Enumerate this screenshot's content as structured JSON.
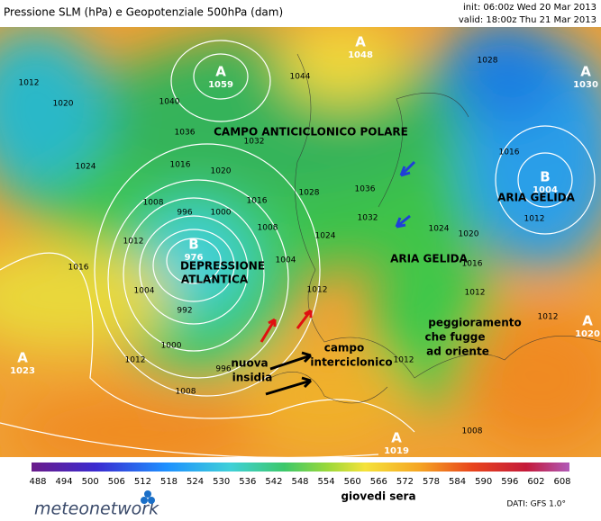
{
  "header": {
    "title": "Pressione SLM (hPa) e Geopotenziale 500hPa (dam)",
    "init": "init: 06:00z Wed 20 Mar 2013",
    "valid": "valid: 18:00z Thu 21 Mar 2013"
  },
  "map": {
    "centers": [
      {
        "label": "A",
        "value": 1059
      },
      {
        "label": "A",
        "value": 1048
      },
      {
        "label": "A",
        "value": 1030
      },
      {
        "label": "B",
        "value": 1004
      },
      {
        "label": "B",
        "value": 976
      },
      {
        "label": "A",
        "value": 1023
      },
      {
        "label": "A",
        "value": 1020
      },
      {
        "label": "A",
        "value": 1019
      }
    ],
    "isobar_labels": [
      1012,
      1020,
      1024,
      1016,
      1020,
      1008,
      996,
      1000,
      1016,
      1008,
      1012,
      1016,
      1004,
      992,
      1000,
      1012,
      996,
      1008,
      1028,
      1024,
      1004,
      1012,
      1036,
      1032,
      1044,
      1040,
      1036,
      1032,
      1024,
      1020,
      1016,
      1012,
      1016,
      1012,
      1012,
      1008,
      1012,
      1028
    ],
    "annotations": {
      "polar": "CAMPO ANTICICLONICO POLARE",
      "cold_east": "ARIA GELIDA",
      "cold_center": "ARIA GELIDA",
      "depression": [
        "DEPRESSIONE",
        "ATLANTICA"
      ],
      "worsening": [
        "peggioramento",
        "che fugge",
        "ad oriente"
      ],
      "threat": [
        "nuova",
        "insidia"
      ],
      "intercyclonic": [
        "campo",
        "interciclonico"
      ]
    }
  },
  "colorbar": {
    "ticks": [
      488,
      494,
      500,
      506,
      512,
      518,
      524,
      530,
      536,
      542,
      548,
      554,
      560,
      566,
      572,
      578,
      584,
      590,
      596,
      602,
      608
    ]
  },
  "footer": {
    "caption": "giovedi sera",
    "source": "DATI: GFS 1.0°",
    "logo": "meteonetwork"
  }
}
